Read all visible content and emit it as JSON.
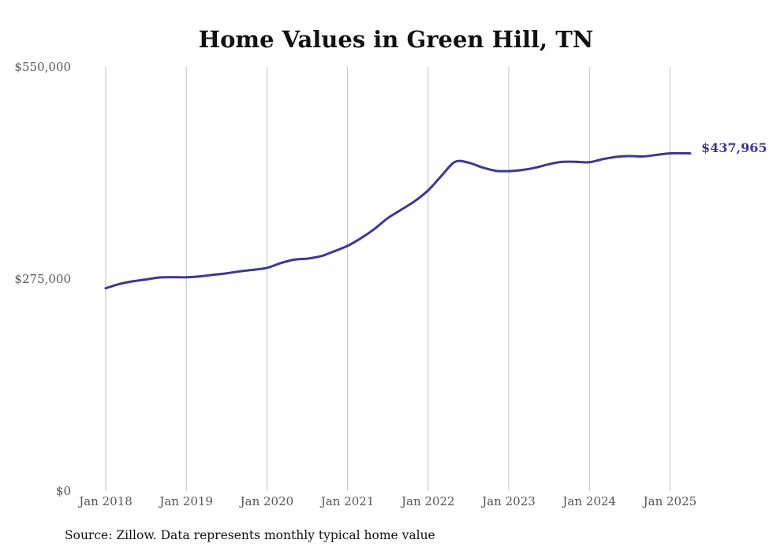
{
  "chart_data": {
    "type": "line",
    "title": "Home Values in Green Hill, TN",
    "source": "Source: Zillow. Data represents monthly typical home value",
    "xlabel": "",
    "ylabel": "",
    "ylim": [
      0,
      550000
    ],
    "yticks": [
      {
        "value": 0,
        "label": "$0"
      },
      {
        "value": 275000,
        "label": "$275,000"
      },
      {
        "value": 550000,
        "label": "$550,000"
      }
    ],
    "xticks": [
      {
        "date": "2018-01",
        "label": "Jan 2018"
      },
      {
        "date": "2019-01",
        "label": "Jan 2019"
      },
      {
        "date": "2020-01",
        "label": "Jan 2020"
      },
      {
        "date": "2021-01",
        "label": "Jan 2021"
      },
      {
        "date": "2022-01",
        "label": "Jan 2022"
      },
      {
        "date": "2023-01",
        "label": "Jan 2023"
      },
      {
        "date": "2024-01",
        "label": "Jan 2024"
      },
      {
        "date": "2025-01",
        "label": "Jan 2025"
      }
    ],
    "xlim": [
      "2018-01",
      "2025-04"
    ],
    "grid": {
      "vertical": true,
      "horizontal": false
    },
    "end_label": "$437,965",
    "series_color": "#3c3891",
    "series": [
      {
        "points": [
          [
            "2018-01",
            263000
          ],
          [
            "2018-03",
            268500
          ],
          [
            "2018-05",
            272000
          ],
          [
            "2018-07",
            274500
          ],
          [
            "2018-09",
            277000
          ],
          [
            "2018-11",
            277500
          ],
          [
            "2019-01",
            277300
          ],
          [
            "2019-03",
            278500
          ],
          [
            "2019-05",
            280500
          ],
          [
            "2019-07",
            282500
          ],
          [
            "2019-09",
            285000
          ],
          [
            "2019-11",
            287000
          ],
          [
            "2020-01",
            289500
          ],
          [
            "2020-03",
            295500
          ],
          [
            "2020-05",
            300000
          ],
          [
            "2020-07",
            301500
          ],
          [
            "2020-09",
            304500
          ],
          [
            "2020-11",
            311000
          ],
          [
            "2021-01",
            318000
          ],
          [
            "2021-03",
            328000
          ],
          [
            "2021-05",
            340000
          ],
          [
            "2021-07",
            354000
          ],
          [
            "2021-09",
            365000
          ],
          [
            "2021-11",
            376000
          ],
          [
            "2022-01",
            390000
          ],
          [
            "2022-03",
            409000
          ],
          [
            "2022-05",
            427000
          ],
          [
            "2022-07",
            426000
          ],
          [
            "2022-09",
            420000
          ],
          [
            "2022-11",
            415500
          ],
          [
            "2023-01",
            415000
          ],
          [
            "2023-03",
            416500
          ],
          [
            "2023-05",
            419500
          ],
          [
            "2023-07",
            424000
          ],
          [
            "2023-09",
            427000
          ],
          [
            "2023-11",
            427000
          ],
          [
            "2024-01",
            426500
          ],
          [
            "2024-03",
            430500
          ],
          [
            "2024-05",
            433500
          ],
          [
            "2024-07",
            434500
          ],
          [
            "2024-09",
            434000
          ],
          [
            "2024-11",
            436000
          ],
          [
            "2025-01",
            438000
          ],
          [
            "2025-04",
            437965
          ]
        ]
      }
    ]
  }
}
